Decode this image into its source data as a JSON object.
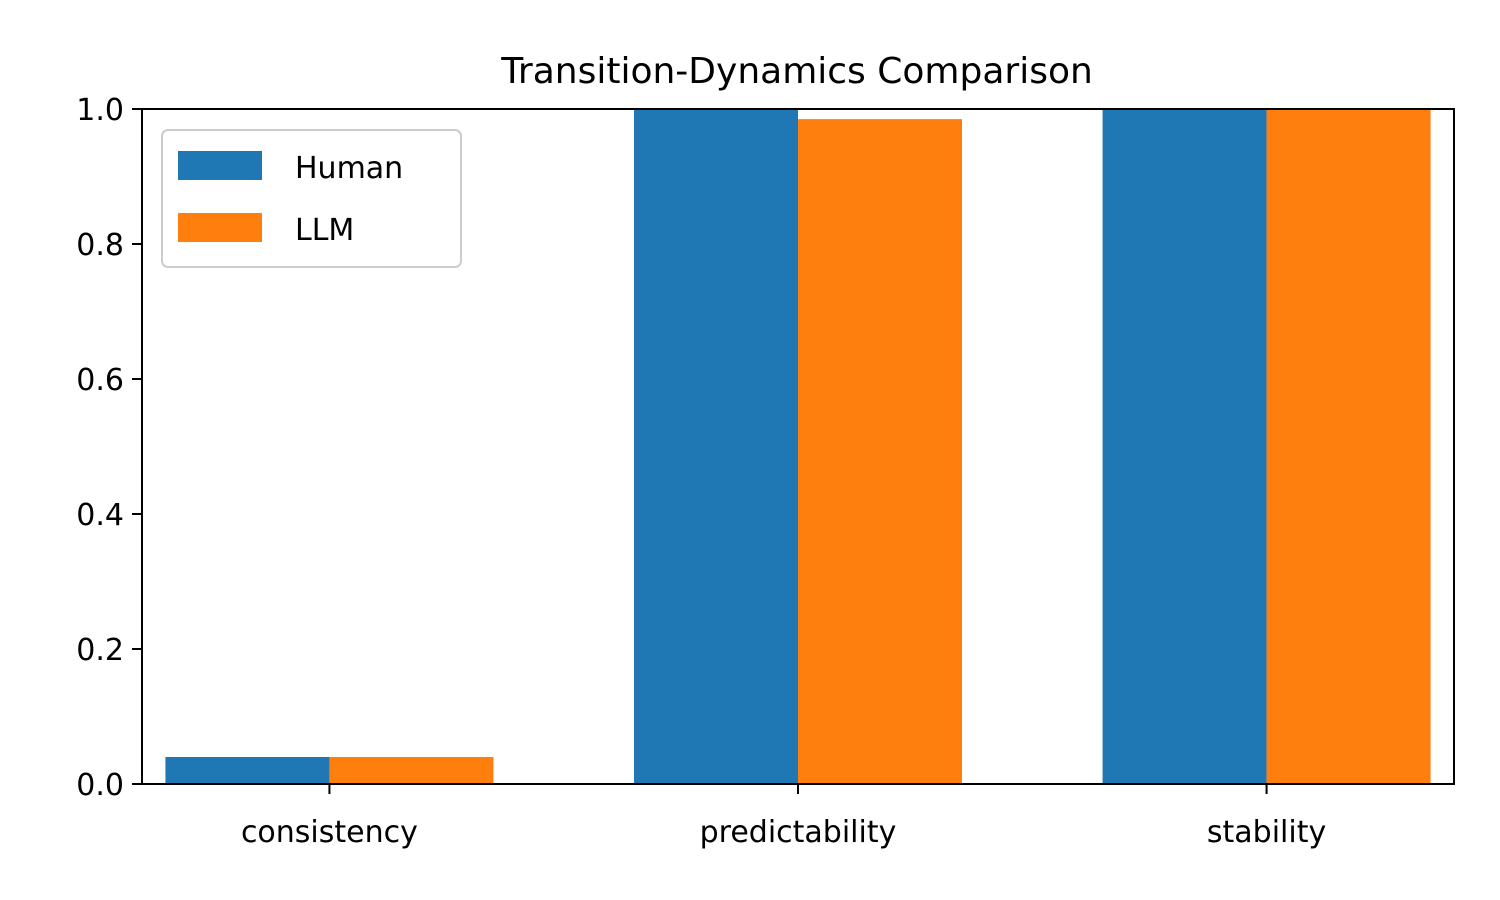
{
  "chart_data": {
    "type": "bar",
    "title": "Transition-Dynamics Comparison",
    "xlabel": "",
    "ylabel": "",
    "categories": [
      "consistency",
      "predictability",
      "stability"
    ],
    "series": [
      {
        "name": "Human",
        "color": "#1f77b4",
        "values": [
          0.04,
          1.0,
          1.0
        ]
      },
      {
        "name": "LLM",
        "color": "#ff7f0e",
        "values": [
          0.04,
          0.985,
          1.0
        ]
      }
    ],
    "ylim": [
      0.0,
      1.0
    ],
    "yticks": [
      "0.0",
      "0.2",
      "0.4",
      "0.6",
      "0.8",
      "1.0"
    ],
    "grid": false,
    "legend_position": "top-left"
  }
}
